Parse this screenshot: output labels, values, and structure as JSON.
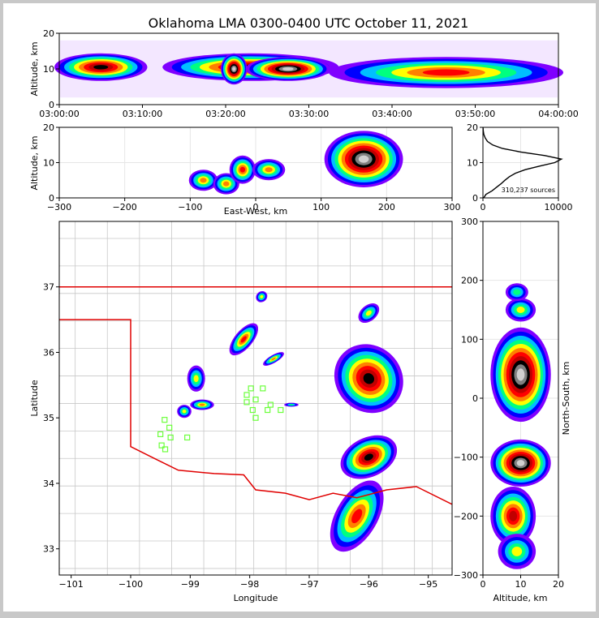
{
  "title": "Oklahoma LMA 0300-0400 UTC October 11, 2021",
  "colors": {
    "frame": "#c8c8c8",
    "state_border": "#e00000",
    "county_lines": "#c8c8c8",
    "stations": "#6cff3c",
    "density_scale": [
      "#7f00ff",
      "#0000ff",
      "#00bfff",
      "#00ff80",
      "#ffff00",
      "#ff8000",
      "#ff0000",
      "#c00000",
      "#000000",
      "#808080",
      "#d0d0d0",
      "#ffffff"
    ]
  },
  "chart_data": [
    {
      "panel": "time-height",
      "type": "heatmap",
      "xlabel": "",
      "ylabel": "Altitude, km",
      "xlim": [
        "03:00:00",
        "04:00:00"
      ],
      "ylim": [
        0,
        20
      ],
      "xticks": [
        "03:00:00",
        "03:10:00",
        "03:20:00",
        "03:30:00",
        "03:40:00",
        "03:50:00",
        "04:00:00"
      ],
      "yticks": [
        "0",
        "10",
        "20"
      ],
      "bands": [
        {
          "t": [
            0,
            10
          ],
          "z": [
            8,
            13
          ],
          "level": 9
        },
        {
          "t": [
            13,
            33
          ],
          "z": [
            8,
            13
          ],
          "level": 9
        },
        {
          "t": [
            20,
            22
          ],
          "z": [
            7,
            13
          ],
          "level": 11
        },
        {
          "t": [
            23,
            32
          ],
          "z": [
            8,
            12
          ],
          "level": 11
        },
        {
          "t": [
            33,
            60
          ],
          "z": [
            6,
            12
          ],
          "level": 7
        }
      ]
    },
    {
      "panel": "east-west-altitude",
      "type": "heatmap",
      "xlabel": "East-West, km",
      "ylabel": "Altitude, km",
      "xlim": [
        -300,
        300
      ],
      "ylim": [
        0,
        20
      ],
      "xticks": [
        "−300",
        "−200",
        "−100",
        "0",
        "100",
        "200",
        "300"
      ],
      "yticks": [
        "0",
        "10",
        "20"
      ],
      "blobs": [
        {
          "x": -80,
          "z": 5,
          "rx": 22,
          "rz": 3,
          "level": 6
        },
        {
          "x": -45,
          "z": 4,
          "rx": 20,
          "rz": 3,
          "level": 6
        },
        {
          "x": -20,
          "z": 8,
          "rx": 20,
          "rz": 4,
          "level": 7
        },
        {
          "x": 20,
          "z": 8,
          "rx": 25,
          "rz": 3,
          "level": 6
        },
        {
          "x": 165,
          "z": 11,
          "rx": 60,
          "rz": 8,
          "level": 11
        }
      ]
    },
    {
      "panel": "altitude-histogram",
      "type": "line",
      "xlim": [
        0,
        10000
      ],
      "ylim": [
        0,
        20
      ],
      "xticks": [
        "0",
        "10000"
      ],
      "yticks": [
        "0",
        "10",
        "20"
      ],
      "annotation": "310,237 sources",
      "altitude_km": [
        0,
        1,
        2,
        3,
        4,
        5,
        6,
        7,
        8,
        9,
        10,
        11,
        12,
        13,
        14,
        15,
        16,
        17,
        18,
        19,
        20
      ],
      "counts": [
        100,
        400,
        1200,
        1800,
        2400,
        2900,
        3500,
        4300,
        5600,
        7500,
        9500,
        10400,
        8200,
        5000,
        2600,
        1300,
        600,
        300,
        120,
        40,
        10
      ]
    },
    {
      "panel": "plan-view",
      "type": "heatmap",
      "xlabel": "Longitude",
      "ylabel": "Latitude",
      "xlim": [
        -101.2,
        -94.6
      ],
      "ylim": [
        32.6,
        38.0
      ],
      "xticks": [
        "−101",
        "−100",
        "−99",
        "−98",
        "−97",
        "−96",
        "−95"
      ],
      "yticks": [
        "33",
        "34",
        "35",
        "36",
        "37"
      ],
      "blobs": [
        {
          "lon": -96.0,
          "lat": 35.6,
          "rx": 0.55,
          "ry": 0.55,
          "rot": -45,
          "level": 9
        },
        {
          "lon": -96.0,
          "lat": 34.4,
          "rx": 0.5,
          "ry": 0.3,
          "rot": -25,
          "level": 9
        },
        {
          "lon": -96.2,
          "lat": 33.5,
          "rx": 0.35,
          "ry": 0.6,
          "rot": 30,
          "level": 7
        },
        {
          "lon": -96.0,
          "lat": 36.6,
          "rx": 0.2,
          "ry": 0.12,
          "rot": -40,
          "level": 5
        },
        {
          "lon": -98.1,
          "lat": 36.2,
          "rx": 0.15,
          "ry": 0.3,
          "rot": 40,
          "level": 7
        },
        {
          "lon": -97.8,
          "lat": 36.85,
          "rx": 0.1,
          "ry": 0.08,
          "rot": -40,
          "level": 5
        },
        {
          "lon": -97.6,
          "lat": 35.9,
          "rx": 0.2,
          "ry": 0.06,
          "rot": -30,
          "level": 6
        },
        {
          "lon": -98.8,
          "lat": 35.2,
          "rx": 0.2,
          "ry": 0.08,
          "rot": 0,
          "level": 6
        },
        {
          "lon": -98.9,
          "lat": 35.6,
          "rx": 0.15,
          "ry": 0.2,
          "rot": 0,
          "level": 5
        },
        {
          "lon": -99.1,
          "lat": 35.1,
          "rx": 0.12,
          "ry": 0.1,
          "rot": 0,
          "level": 5
        },
        {
          "lon": -97.3,
          "lat": 35.2,
          "rx": 0.12,
          "ry": 0.03,
          "rot": 0,
          "level": 4
        }
      ],
      "stations": [
        {
          "lon": -97.98,
          "lat": 35.45
        },
        {
          "lon": -97.78,
          "lat": 35.45
        },
        {
          "lon": -98.05,
          "lat": 35.35
        },
        {
          "lon": -97.9,
          "lat": 35.28
        },
        {
          "lon": -98.05,
          "lat": 35.24
        },
        {
          "lon": -97.95,
          "lat": 35.12
        },
        {
          "lon": -97.65,
          "lat": 35.2
        },
        {
          "lon": -97.7,
          "lat": 35.12
        },
        {
          "lon": -97.48,
          "lat": 35.12
        },
        {
          "lon": -97.9,
          "lat": 35.0
        },
        {
          "lon": -99.43,
          "lat": 34.97
        },
        {
          "lon": -99.35,
          "lat": 34.85
        },
        {
          "lon": -99.5,
          "lat": 34.75
        },
        {
          "lon": -99.33,
          "lat": 34.7
        },
        {
          "lon": -99.05,
          "lat": 34.7
        },
        {
          "lon": -99.48,
          "lat": 34.58
        },
        {
          "lon": -99.42,
          "lat": 34.52
        }
      ],
      "border_note": "Oklahoma state outline"
    },
    {
      "panel": "altitude-north-south",
      "type": "heatmap",
      "xlabel": "Altitude, km",
      "ylabel": "North-South, km",
      "xlim": [
        0,
        20
      ],
      "ylim": [
        -300,
        300
      ],
      "xticks": [
        "0",
        "10",
        "20"
      ],
      "yticks": [
        "−300",
        "−200",
        "−100",
        "0",
        "100",
        "200",
        "300"
      ],
      "blobs": [
        {
          "z": 10,
          "y": 40,
          "rx": 8,
          "ry": 80,
          "level": 11
        },
        {
          "z": 10,
          "y": -110,
          "rx": 8,
          "ry": 40,
          "level": 11
        },
        {
          "z": 8,
          "y": -200,
          "rx": 6,
          "ry": 50,
          "level": 8
        },
        {
          "z": 9,
          "y": -260,
          "rx": 5,
          "ry": 30,
          "level": 5
        },
        {
          "z": 10,
          "y": 150,
          "rx": 4,
          "ry": 20,
          "level": 5
        },
        {
          "z": 9,
          "y": 180,
          "rx": 3,
          "ry": 15,
          "level": 4
        }
      ]
    }
  ]
}
